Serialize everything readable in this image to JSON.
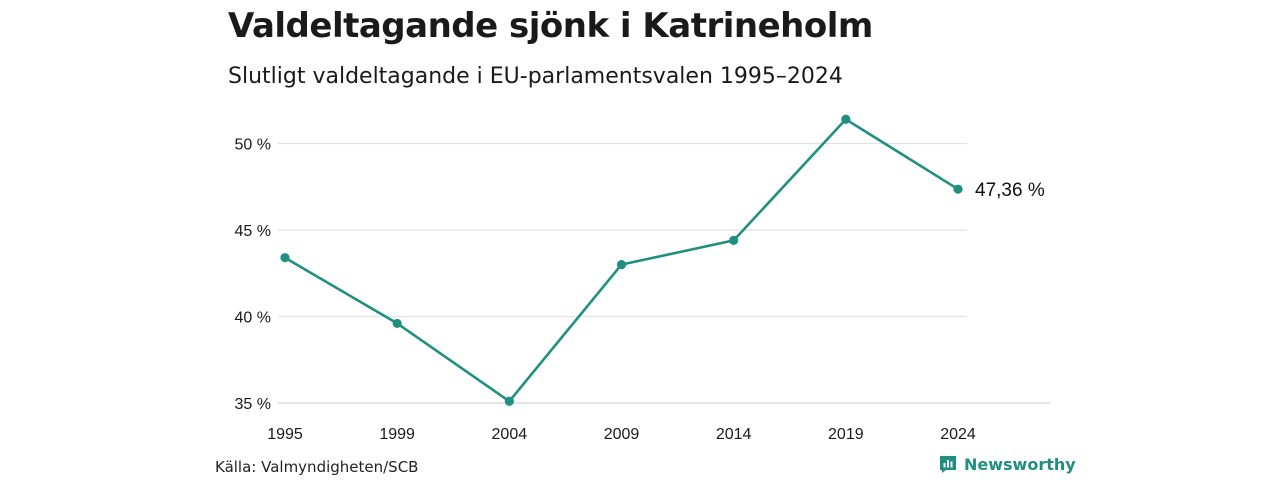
{
  "title": "Valdeltagande sjönk i Katrineholm",
  "subtitle": "Slutligt valdeltagande i EU-parlamentsvalen 1995–2024",
  "source": "Källa: Valmyndigheten/SCB",
  "brand": {
    "name": "Newsworthy",
    "icon": "newsworthy-logo-icon"
  },
  "colors": {
    "line": "#1f9080",
    "grid": "#e2e2e2",
    "text": "#1a1a1a"
  },
  "chart_data": {
    "type": "line",
    "x": [
      "1995",
      "1999",
      "2004",
      "2009",
      "2014",
      "2019",
      "2024"
    ],
    "series": [
      {
        "values": [
          43.4,
          39.6,
          35.1,
          43.0,
          44.4,
          51.4,
          47.36
        ]
      }
    ],
    "ylim": [
      35,
      51.4
    ],
    "yticks": [
      35,
      40,
      45,
      50
    ],
    "ytick_labels": [
      "35 %",
      "40 %",
      "45 %",
      "50 %"
    ],
    "end_label": "47,36 %",
    "grid": true,
    "xlabel": "",
    "ylabel": ""
  }
}
